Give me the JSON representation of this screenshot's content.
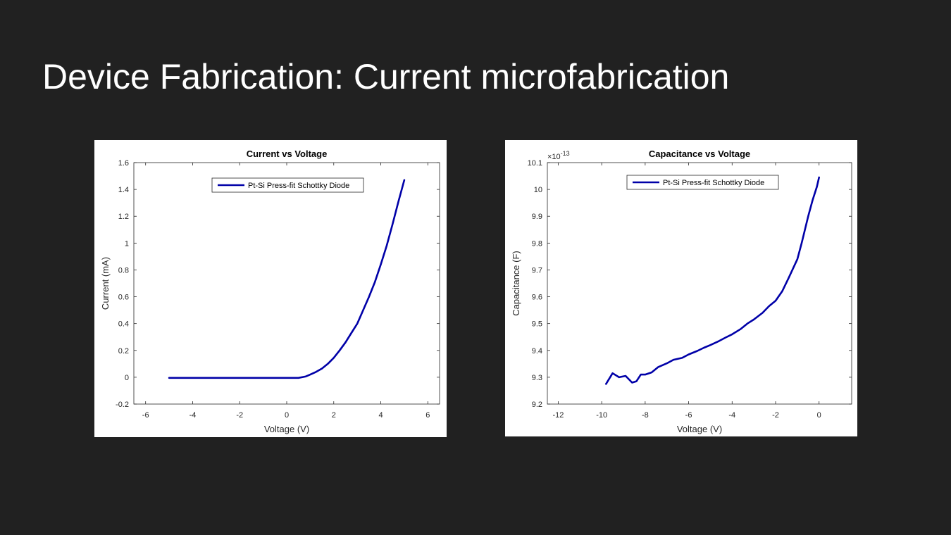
{
  "slide": {
    "title": "Device Fabrication: Current microfabrication"
  },
  "colors": {
    "background": "#212121",
    "series": "#0000a8",
    "axis": "#262626"
  },
  "chart_data": [
    {
      "type": "line",
      "title": "Current vs Voltage",
      "xlabel": "Voltage (V)",
      "ylabel": "Current (mA)",
      "xlim": [
        -6.5,
        6.5
      ],
      "ylim": [
        -0.2,
        1.6
      ],
      "xticks": [
        -6,
        -4,
        -2,
        0,
        2,
        4,
        6
      ],
      "yticks": [
        -0.2,
        0,
        0.2,
        0.4,
        0.6,
        0.8,
        1,
        1.2,
        1.4,
        1.6
      ],
      "xtick_labels": [
        "-6",
        "-4",
        "-2",
        "0",
        "2",
        "4",
        "6"
      ],
      "ytick_labels": [
        "-0.2",
        "0",
        "0.2",
        "0.4",
        "0.6",
        "0.8",
        "1",
        "1.2",
        "1.4",
        "1.6"
      ],
      "legend_position": "top-center",
      "grid": false,
      "series": [
        {
          "name": "Pt-Si Press-fit Schottky Diode",
          "x": [
            -5,
            -4,
            -3,
            -2,
            -1,
            0,
            0.5,
            0.8,
            1,
            1.25,
            1.5,
            1.75,
            2,
            2.25,
            2.5,
            2.75,
            3,
            3.25,
            3.5,
            3.75,
            4,
            4.25,
            4.5,
            4.75,
            5
          ],
          "y": [
            -0.005,
            -0.005,
            -0.005,
            -0.005,
            -0.005,
            -0.005,
            -0.005,
            0.005,
            0.02,
            0.04,
            0.065,
            0.1,
            0.145,
            0.2,
            0.26,
            0.33,
            0.4,
            0.5,
            0.6,
            0.71,
            0.84,
            0.98,
            1.14,
            1.31,
            1.47
          ]
        }
      ]
    },
    {
      "type": "line",
      "title": "Capacitance vs Voltage",
      "xlabel": "Voltage (V)",
      "ylabel": "Capacitance (F)",
      "axis_exponent": "×10",
      "axis_exponent_power": "-13",
      "xlim": [
        -12.5,
        1.5
      ],
      "ylim": [
        9.2,
        10.1
      ],
      "xticks": [
        -12,
        -10,
        -8,
        -6,
        -4,
        -2,
        0
      ],
      "yticks": [
        9.2,
        9.3,
        9.4,
        9.5,
        9.6,
        9.7,
        9.8,
        9.9,
        10,
        10.1
      ],
      "xtick_labels": [
        "-12",
        "-10",
        "-8",
        "-6",
        "-4",
        "-2",
        "0"
      ],
      "ytick_labels": [
        "9.2",
        "9.3",
        "9.4",
        "9.5",
        "9.6",
        "9.7",
        "9.8",
        "9.9",
        "10",
        "10.1"
      ],
      "legend_position": "top-center",
      "grid": false,
      "series": [
        {
          "name": "Pt-Si Press-fit Schottky Diode",
          "x": [
            -9.8,
            -9.5,
            -9.2,
            -8.9,
            -8.6,
            -8.4,
            -8.2,
            -8.0,
            -7.7,
            -7.4,
            -7.0,
            -6.7,
            -6.3,
            -6.0,
            -5.6,
            -5.3,
            -5.0,
            -4.6,
            -4.3,
            -4.0,
            -3.6,
            -3.3,
            -3.0,
            -2.6,
            -2.3,
            -2.0,
            -1.7,
            -1.4,
            -1.0,
            -0.8,
            -0.5,
            -0.3,
            -0.1,
            0
          ],
          "y": [
            9.275,
            9.315,
            9.3,
            9.305,
            9.28,
            9.285,
            9.31,
            9.31,
            9.318,
            9.338,
            9.352,
            9.365,
            9.372,
            9.385,
            9.398,
            9.41,
            9.42,
            9.435,
            9.448,
            9.46,
            9.48,
            9.5,
            9.515,
            9.54,
            9.565,
            9.585,
            9.62,
            9.67,
            9.74,
            9.8,
            9.9,
            9.96,
            10.01,
            10.045
          ]
        }
      ]
    }
  ]
}
